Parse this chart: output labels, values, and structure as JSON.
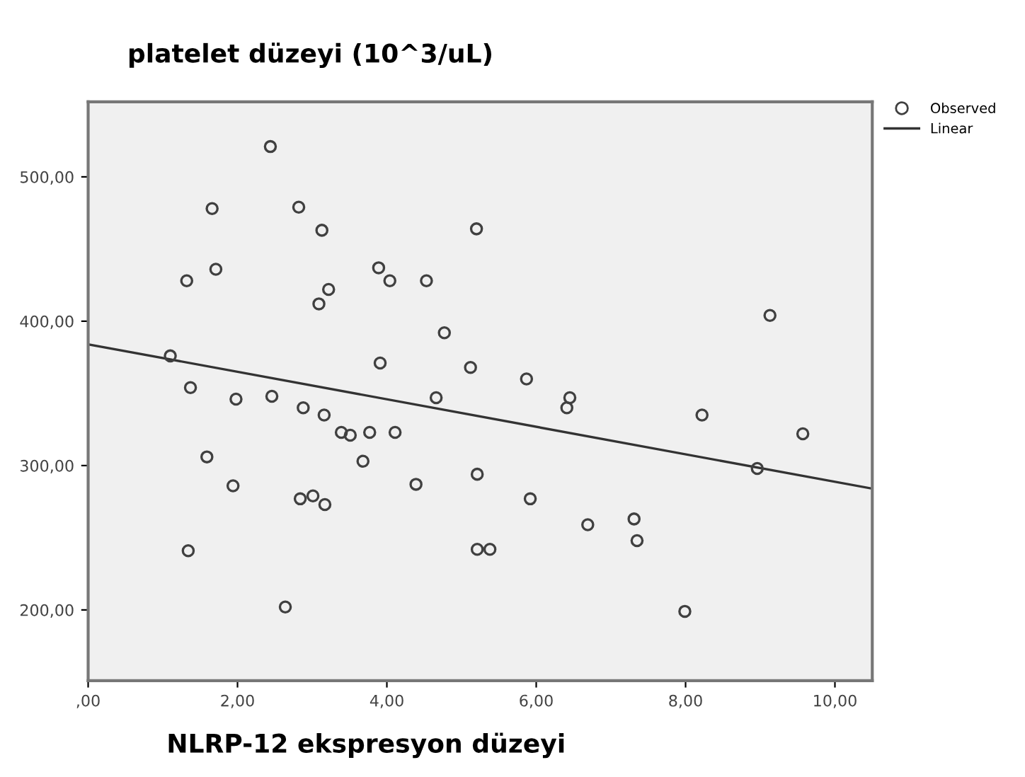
{
  "chart_data": {
    "type": "scatter",
    "title": "platelet düzeyi (10^3/uL)",
    "xlabel": "NLRP-12 ekspresyon düzeyi",
    "xlim": [
      0,
      10.5
    ],
    "ylim": [
      151,
      552
    ],
    "xticks": [
      {
        "value": 0,
        "label": ",00"
      },
      {
        "value": 2,
        "label": "2,00"
      },
      {
        "value": 4,
        "label": "4,00"
      },
      {
        "value": 6,
        "label": "6,00"
      },
      {
        "value": 8,
        "label": "8,00"
      },
      {
        "value": 10,
        "label": "10,00"
      }
    ],
    "yticks": [
      {
        "value": 200,
        "label": "200,00"
      },
      {
        "value": 300,
        "label": "300,00"
      },
      {
        "value": 400,
        "label": "400,00"
      },
      {
        "value": 500,
        "label": "500,00"
      }
    ],
    "grid": false,
    "legend": "top right",
    "series": [
      {
        "name": "Observed",
        "marker": "circle",
        "color": "#404040",
        "x": [
          2.44,
          1.66,
          2.82,
          3.13,
          5.2,
          1.32,
          1.71,
          3.89,
          4.04,
          4.53,
          3.22,
          3.09,
          4.77,
          1.1,
          3.91,
          5.12,
          1.37,
          1.98,
          2.46,
          4.66,
          2.88,
          3.16,
          3.39,
          3.51,
          3.77,
          4.11,
          3.68,
          1.59,
          5.21,
          1.94,
          4.39,
          2.84,
          3.01,
          3.17,
          1.34,
          5.21,
          5.38,
          2.64,
          5.87,
          6.45,
          6.41,
          8.22,
          9.57,
          9.13,
          8.96,
          5.92,
          6.69,
          7.31,
          7.35,
          7.99
        ],
        "values": [
          521,
          478,
          479,
          463,
          464,
          428,
          436,
          437,
          428,
          428,
          422,
          412,
          392,
          376,
          371,
          368,
          354,
          346,
          348,
          347,
          340,
          335,
          323,
          321,
          323,
          323,
          303,
          306,
          294,
          286,
          287,
          277,
          279,
          273,
          241,
          242,
          242,
          202,
          360,
          347,
          340,
          335,
          322,
          404,
          298,
          277,
          259,
          263,
          248,
          199
        ]
      },
      {
        "name": "Linear",
        "type": "line",
        "marker": "none",
        "line_style": "solid",
        "color": "#333333",
        "x": [
          0,
          10.5
        ],
        "values": [
          384,
          284
        ]
      }
    ]
  }
}
